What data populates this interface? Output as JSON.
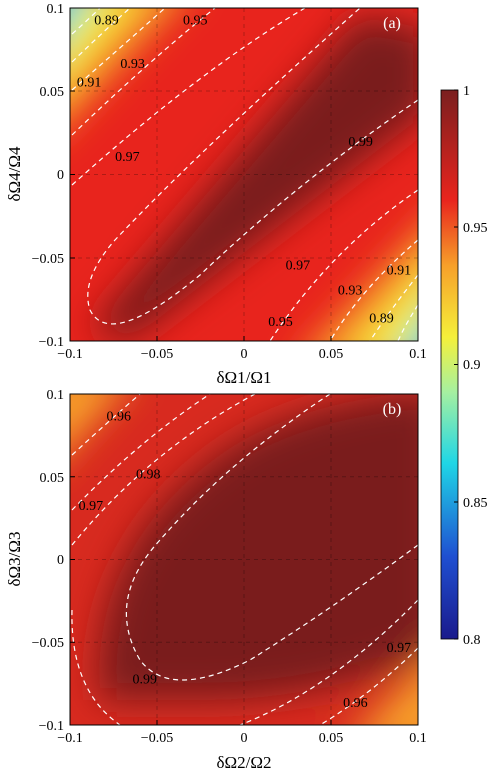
{
  "chart_data": [
    {
      "type": "heatmap",
      "panel_label": "(a)",
      "xlabel": "δΩ1/Ω1",
      "ylabel": "δΩ4/Ω4",
      "xlim": [
        -0.1,
        0.1
      ],
      "ylim": [
        -0.1,
        0.1
      ],
      "xticks": [
        "−0.1",
        "−0.05",
        "0",
        "0.05",
        "0.1"
      ],
      "yticks": [
        "−0.1",
        "−0.05",
        "0",
        "0.05",
        "0.1"
      ],
      "contour_levels": [
        0.89,
        0.91,
        0.93,
        0.95,
        0.97,
        0.99
      ],
      "contour_labels": [
        {
          "text": "0.89",
          "x": -0.079,
          "y": 0.093
        },
        {
          "text": "0.95",
          "x": -0.028,
          "y": 0.093
        },
        {
          "text": "0.93",
          "x": -0.064,
          "y": 0.067
        },
        {
          "text": "0.91",
          "x": -0.089,
          "y": 0.056
        },
        {
          "text": "0.97",
          "x": -0.067,
          "y": 0.011
        },
        {
          "text": "0.99",
          "x": 0.067,
          "y": 0.02
        },
        {
          "text": "0.97",
          "x": 0.031,
          "y": -0.054
        },
        {
          "text": "0.91",
          "x": 0.089,
          "y": -0.057
        },
        {
          "text": "0.93",
          "x": 0.061,
          "y": -0.069
        },
        {
          "text": "0.95",
          "x": 0.021,
          "y": -0.088
        },
        {
          "text": "0.89",
          "x": 0.079,
          "y": -0.086
        }
      ]
    },
    {
      "type": "heatmap",
      "panel_label": "(b)",
      "xlabel": "δΩ2/Ω2",
      "ylabel": "δΩ3/Ω3",
      "xlim": [
        -0.1,
        0.1
      ],
      "ylim": [
        -0.1,
        0.1
      ],
      "xticks": [
        "−0.1",
        "−0.05",
        "0",
        "0.05",
        "0.1"
      ],
      "yticks": [
        "−0.1",
        "−0.05",
        "0",
        "0.05",
        "0.1"
      ],
      "contour_levels": [
        0.96,
        0.97,
        0.98,
        0.99
      ],
      "contour_labels": [
        {
          "text": "0.96",
          "x": -0.072,
          "y": 0.087
        },
        {
          "text": "0.98",
          "x": -0.055,
          "y": 0.052
        },
        {
          "text": "0.97",
          "x": -0.088,
          "y": 0.033
        },
        {
          "text": "0.99",
          "x": -0.057,
          "y": -0.072
        },
        {
          "text": "0.97",
          "x": 0.089,
          "y": -0.053
        },
        {
          "text": "0.96",
          "x": 0.064,
          "y": -0.086
        }
      ]
    }
  ],
  "colorbar": {
    "min": 0.8,
    "max": 1.0,
    "ticks": [
      "1",
      "0.95",
      "0.9",
      "0.85",
      "0.8"
    ],
    "colormap": [
      "#1a1a8c",
      "#1f6fd1",
      "#1fd6e6",
      "#a0f0a0",
      "#f5f03a",
      "#f7a02a",
      "#e8241d",
      "#7a1f1f"
    ]
  },
  "colors": {
    "contour": "#ffffff",
    "background": "#ffffff"
  }
}
